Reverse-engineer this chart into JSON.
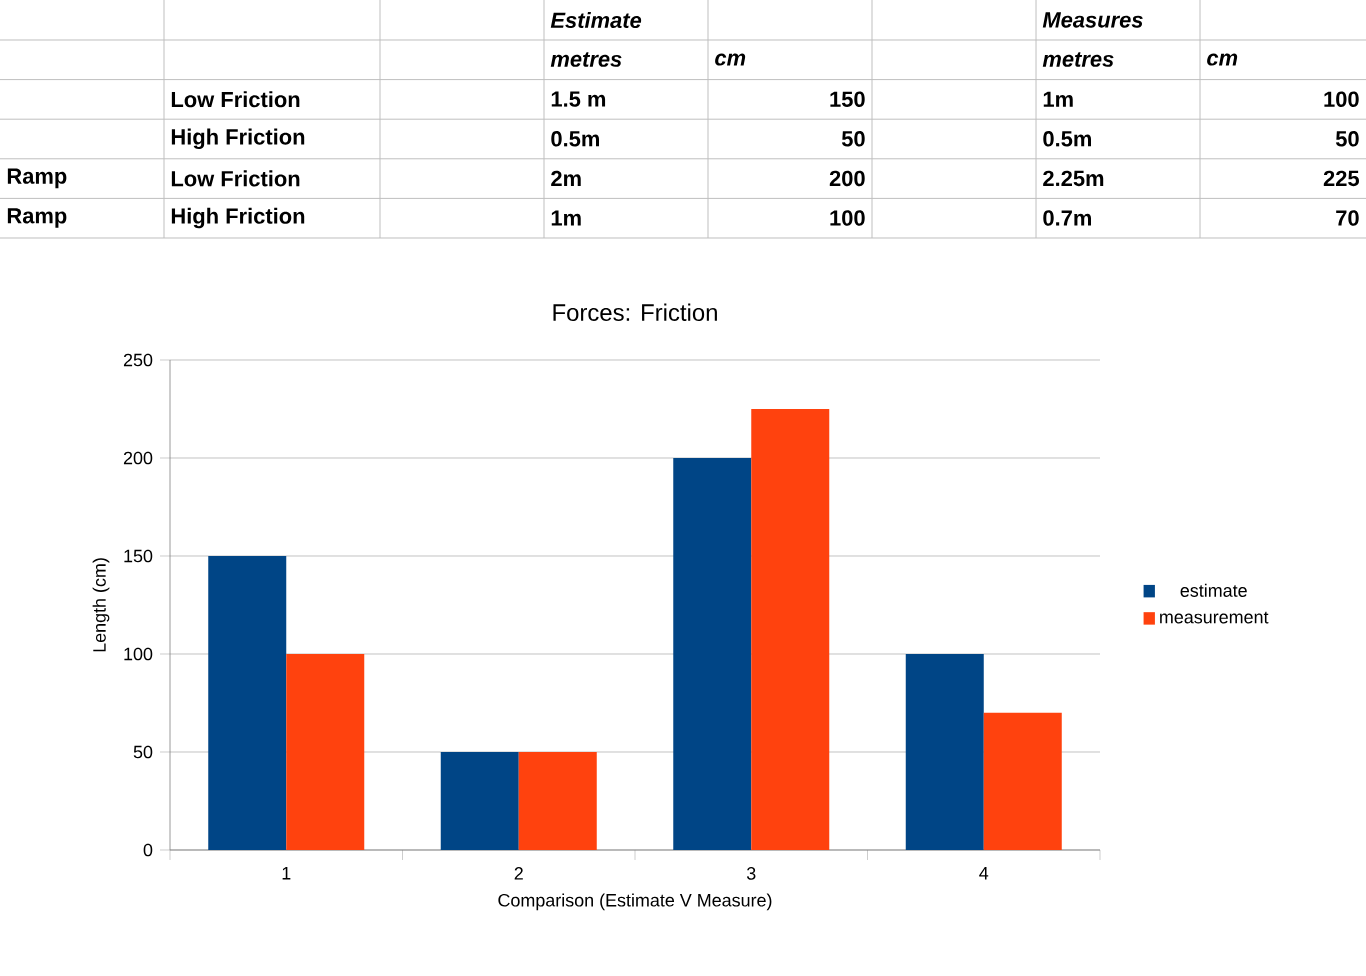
{
  "chart_data": {
    "type": "bar",
    "title": "Forces: Friction",
    "xlabel": "Comparison (Estimate V Measure)",
    "ylabel": "Length (cm)",
    "categories": [
      "1",
      "2",
      "3",
      "4"
    ],
    "series": [
      {
        "name": "estimate",
        "color": "#004586",
        "values": [
          150,
          50,
          200,
          100
        ]
      },
      {
        "name": "measurement",
        "color": "#ff420e",
        "values": [
          100,
          50,
          225,
          70
        ]
      }
    ],
    "ylim": [
      0,
      250
    ],
    "yticks": [
      0,
      50,
      100,
      150,
      200,
      250
    ],
    "grid": "y",
    "legend": "right",
    "annotations": [
      "Estimate",
      "Measures",
      "metres",
      "cm",
      "metres",
      "cm",
      "Low Friction",
      "1.5 m",
      "150",
      "1m",
      "100",
      "High Friction",
      "0.5m",
      "50",
      "0.5m",
      "50",
      "Ramp",
      "Low Friction",
      "2m",
      "200",
      "2.25m",
      "225",
      "Ramp",
      "High Friction",
      "1m",
      "100",
      "0.7m",
      "70"
    ]
  }
}
